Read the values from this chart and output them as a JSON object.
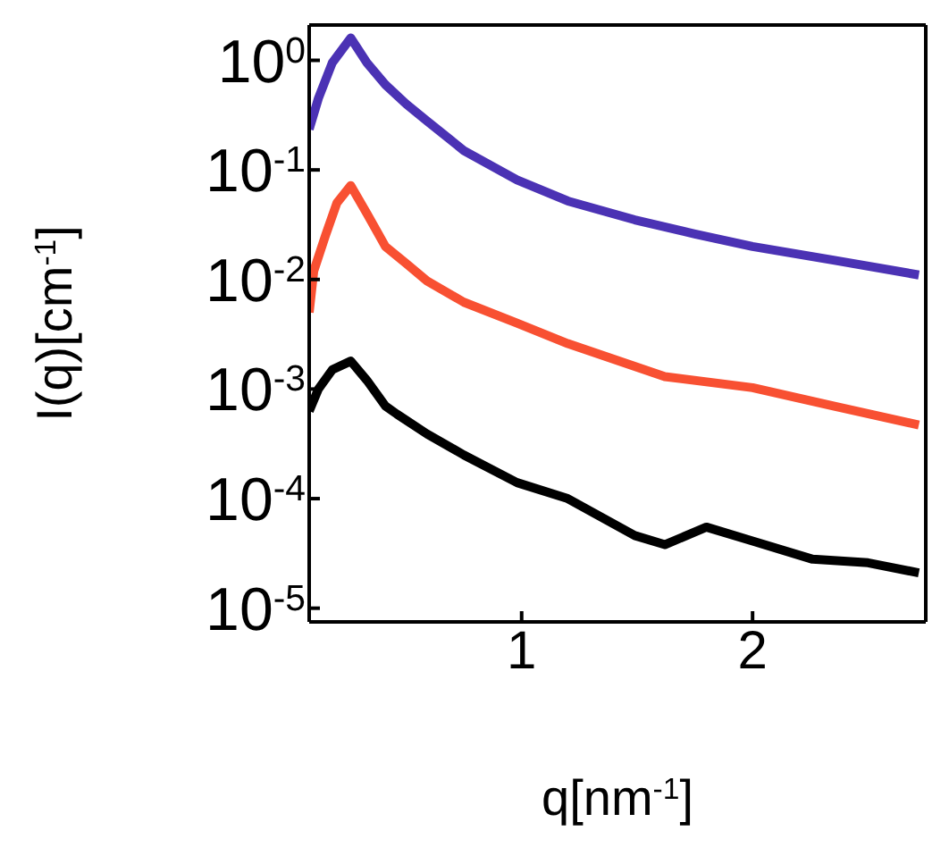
{
  "chart_data": {
    "type": "line",
    "xlabel": "q[nm$^{-1}$]",
    "ylabel": "I(q)[cm$^{-1}$]",
    "log": "y",
    "marker": "none",
    "line_style": "solid",
    "xlim": [
      0.08,
      2.75
    ],
    "xticks": [
      1,
      2
    ],
    "ylim": [
      7.5e-06,
      2.1
    ],
    "yticks": [
      {
        "value": 1e-05,
        "label": "10$^{-5}$"
      },
      {
        "value": 0.0001,
        "label": "10$^{-4}$"
      },
      {
        "value": 0.001,
        "label": "10$^{-3}$"
      },
      {
        "value": 0.01,
        "label": "10$^{-2}$"
      },
      {
        "value": 0.1,
        "label": "10$^{-1}$"
      },
      {
        "value": 1,
        "label": "10$^{0}$"
      }
    ],
    "series": [
      {
        "color": "#4b32b4",
        "x": [
          0.08,
          0.12,
          0.18,
          0.26,
          0.33,
          0.41,
          0.5,
          0.59,
          0.75,
          0.98,
          1.2,
          1.49,
          1.75,
          2.0,
          2.35,
          2.72
        ],
        "values": [
          0.235,
          0.45,
          0.95,
          1.6,
          0.95,
          0.6,
          0.4,
          0.28,
          0.15,
          0.081,
          0.052,
          0.035,
          0.026,
          0.02,
          0.015,
          0.011
        ]
      },
      {
        "color": "#f85032",
        "x": [
          0.08,
          0.1,
          0.15,
          0.2,
          0.26,
          0.33,
          0.41,
          0.5,
          0.59,
          0.75,
          0.98,
          1.2,
          1.62,
          2.0,
          2.35,
          2.72
        ],
        "values": [
          0.005,
          0.012,
          0.025,
          0.05,
          0.072,
          0.04,
          0.02,
          0.014,
          0.0097,
          0.0062,
          0.004,
          0.0026,
          0.0013,
          0.00103,
          0.0007,
          0.00047
        ]
      },
      {
        "color": "#000000",
        "x": [
          0.08,
          0.12,
          0.18,
          0.26,
          0.33,
          0.41,
          0.46,
          0.59,
          0.75,
          0.98,
          1.2,
          1.49,
          1.62,
          1.8,
          2.0,
          2.26,
          2.5,
          2.72
        ],
        "values": [
          0.00063,
          0.001,
          0.0015,
          0.0018,
          0.0012,
          0.0007,
          0.00059,
          0.00039,
          0.00025,
          0.00014,
          0.0001,
          4.6e-05,
          3.8e-05,
          5.5e-05,
          4.1e-05,
          2.8e-05,
          2.6e-05,
          2.1e-05
        ]
      }
    ]
  }
}
